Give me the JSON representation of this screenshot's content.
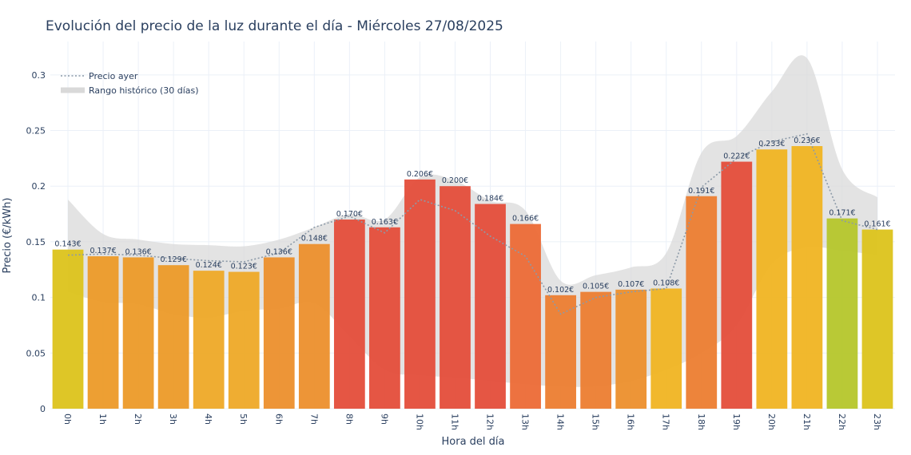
{
  "chart_data": {
    "type": "bar",
    "title": "Evolución del precio de la luz durante el día - Miércoles 27/08/2025",
    "xlabel": "Hora del día",
    "ylabel": "Precio (€/kWh)",
    "ylim": [
      0,
      0.33
    ],
    "yticks": [
      0,
      0.05,
      0.1,
      0.15,
      0.2,
      0.25,
      0.3
    ],
    "ytick_labels": [
      "0",
      "0.05",
      "0.1",
      "0.15",
      "0.2",
      "0.25",
      "0.3"
    ],
    "categories": [
      "0h",
      "1h",
      "2h",
      "3h",
      "4h",
      "5h",
      "6h",
      "7h",
      "8h",
      "9h",
      "10h",
      "11h",
      "12h",
      "13h",
      "14h",
      "15h",
      "16h",
      "17h",
      "18h",
      "19h",
      "20h",
      "21h",
      "22h",
      "23h"
    ],
    "values": [
      0.143,
      0.137,
      0.136,
      0.129,
      0.124,
      0.123,
      0.136,
      0.148,
      0.17,
      0.163,
      0.206,
      0.2,
      0.184,
      0.166,
      0.102,
      0.105,
      0.107,
      0.108,
      0.191,
      0.222,
      0.233,
      0.236,
      0.171,
      0.161
    ],
    "value_labels": [
      "0.143€",
      "0.137€",
      "0.136€",
      "0.129€",
      "0.124€",
      "0.123€",
      "0.136€",
      "0.148€",
      "0.170€",
      "0.163€",
      "0.206€",
      "0.200€",
      "0.184€",
      "0.166€",
      "0.102€",
      "0.105€",
      "0.107€",
      "0.108€",
      "0.191€",
      "0.222€",
      "0.233€",
      "0.236€",
      "0.171€",
      "0.161€"
    ],
    "bar_colors": [
      "#dcc31b",
      "#ec9a28",
      "#ec9a28",
      "#ec9a28",
      "#eea927",
      "#eea927",
      "#ec8f2c",
      "#ec8f2c",
      "#e44d3a",
      "#e44d3a",
      "#e44d3a",
      "#e44d3a",
      "#e44d3a",
      "#ec6a36",
      "#ec7d30",
      "#ec7d30",
      "#ec8f2c",
      "#f0b422",
      "#ec7d30",
      "#e44d3a",
      "#f0b422",
      "#f0b422",
      "#b5c62b",
      "#dcc31b"
    ],
    "series": [
      {
        "name": "Precio ayer",
        "values": [
          0.138,
          0.139,
          0.138,
          0.135,
          0.133,
          0.132,
          0.14,
          0.163,
          0.173,
          0.158,
          0.188,
          0.178,
          0.155,
          0.137,
          0.085,
          0.1,
          0.105,
          0.108,
          0.199,
          0.225,
          0.24,
          0.247,
          0.169,
          0.161
        ]
      },
      {
        "name": "Rango histórico (30 días)",
        "min": [
          0.105,
          0.096,
          0.094,
          0.085,
          0.082,
          0.088,
          0.09,
          0.095,
          0.065,
          0.035,
          0.03,
          0.028,
          0.025,
          0.022,
          0.02,
          0.02,
          0.025,
          0.035,
          0.05,
          0.075,
          0.13,
          0.145,
          0.142,
          0.138
        ],
        "max": [
          0.188,
          0.157,
          0.152,
          0.148,
          0.147,
          0.146,
          0.152,
          0.163,
          0.175,
          0.17,
          0.208,
          0.205,
          0.187,
          0.178,
          0.115,
          0.12,
          0.127,
          0.14,
          0.23,
          0.245,
          0.285,
          0.315,
          0.215,
          0.19
        ]
      }
    ],
    "legend_position": "top-left",
    "grid": true,
    "colors": {
      "title": "#2a3f5f",
      "grid": "#ebf0f8",
      "range_fill": "#d9d9d9",
      "ayer_line": "#8c9aa8"
    }
  }
}
